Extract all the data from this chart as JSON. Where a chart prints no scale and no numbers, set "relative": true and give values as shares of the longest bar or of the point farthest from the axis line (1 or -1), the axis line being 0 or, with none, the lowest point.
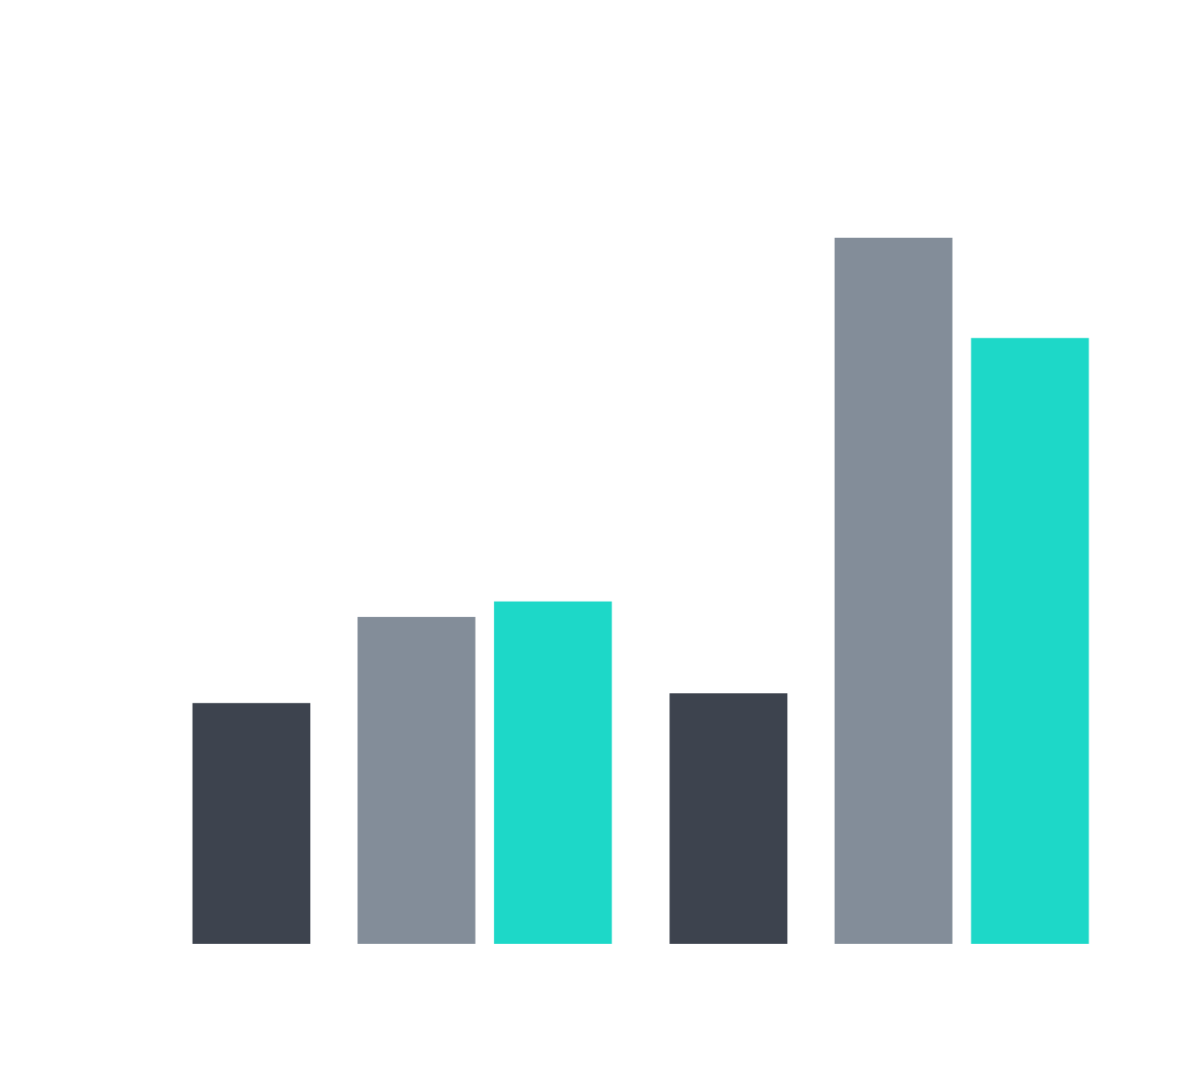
{
  "chart_data": {
    "type": "bar",
    "relative": true,
    "categories": [
      null,
      null
    ],
    "series": [
      {
        "color": "#3d434e",
        "values": [
          0.341,
          0.355
        ]
      },
      {
        "color": "#838d99",
        "values": [
          0.463,
          1
        ]
      },
      {
        "color": "#1dd8c8",
        "values": [
          0.485,
          0.858
        ]
      }
    ],
    "grid": false
  }
}
